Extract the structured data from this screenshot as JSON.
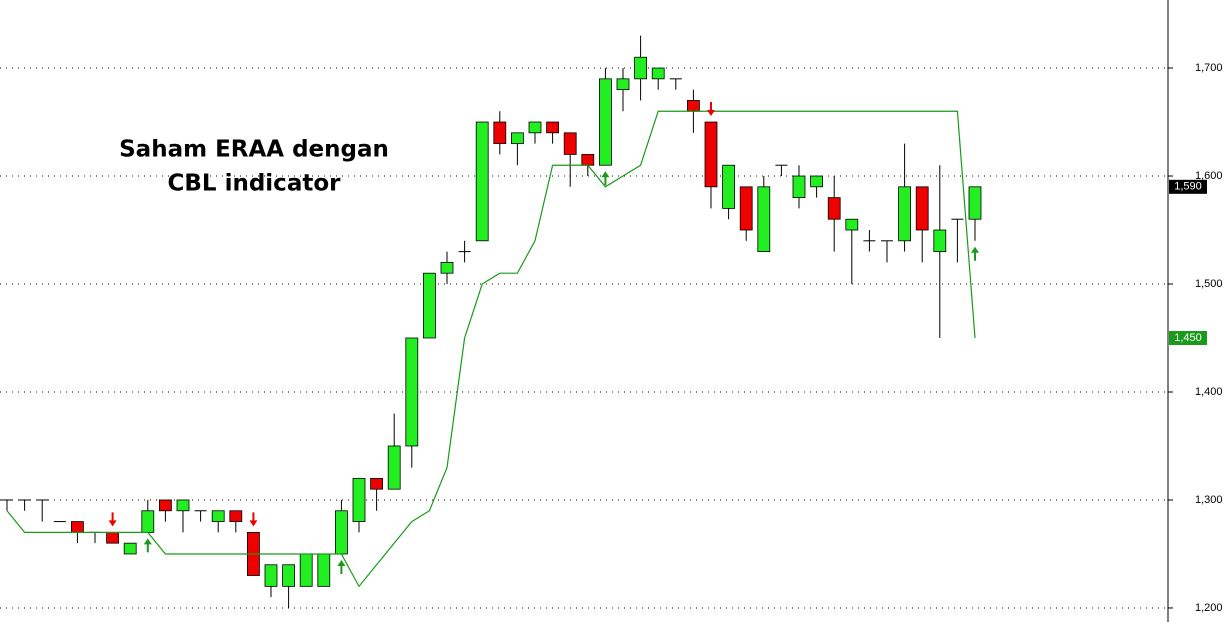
{
  "chart_data": {
    "type": "candlestick",
    "annotations": [
      "Saham ERAA dengan",
      "CBL indicator"
    ],
    "open": [
      1300,
      1300,
      1300,
      1280,
      1280,
      1270,
      1270,
      1250,
      1270,
      1300,
      1290,
      1290,
      1280,
      1290,
      1270,
      1220,
      1220,
      1220,
      1220,
      1250,
      1280,
      1320,
      1310,
      1350,
      1450,
      1510,
      1530,
      1540,
      1650,
      1630,
      1640,
      1650,
      1640,
      1620,
      1610,
      1680,
      1690,
      1690,
      1690,
      1670,
      1650,
      1570,
      1590,
      1530,
      1610,
      1580,
      1590,
      1580,
      1550,
      1540,
      1540,
      1540,
      1590,
      1530,
      1560,
      1560
    ],
    "high": [
      1300,
      1300,
      1300,
      1280,
      1280,
      1270,
      1270,
      1260,
      1300,
      1300,
      1300,
      1290,
      1290,
      1290,
      1270,
      1240,
      1240,
      1250,
      1250,
      1300,
      1320,
      1320,
      1380,
      1450,
      1510,
      1530,
      1540,
      1650,
      1660,
      1640,
      1650,
      1650,
      1640,
      1620,
      1700,
      1700,
      1730,
      1700,
      1690,
      1680,
      1650,
      1610,
      1590,
      1600,
      1610,
      1610,
      1600,
      1600,
      1560,
      1550,
      1540,
      1630,
      1590,
      1610,
      1560,
      1590
    ],
    "low": [
      1290,
      1290,
      1280,
      1280,
      1260,
      1260,
      1260,
      1250,
      1270,
      1280,
      1270,
      1280,
      1270,
      1270,
      1230,
      1210,
      1200,
      1220,
      1220,
      1250,
      1270,
      1290,
      1310,
      1330,
      1450,
      1500,
      1520,
      1540,
      1620,
      1610,
      1630,
      1630,
      1590,
      1600,
      1610,
      1660,
      1670,
      1680,
      1680,
      1640,
      1570,
      1560,
      1540,
      1530,
      1600,
      1570,
      1580,
      1530,
      1500,
      1530,
      1520,
      1530,
      1520,
      1450,
      1520,
      1540
    ],
    "close": [
      1300,
      1300,
      1300,
      1280,
      1270,
      1270,
      1260,
      1260,
      1290,
      1290,
      1300,
      1290,
      1290,
      1280,
      1230,
      1240,
      1240,
      1250,
      1250,
      1290,
      1320,
      1310,
      1350,
      1450,
      1510,
      1520,
      1530,
      1650,
      1630,
      1640,
      1650,
      1640,
      1620,
      1610,
      1690,
      1690,
      1710,
      1700,
      1690,
      1660,
      1590,
      1610,
      1550,
      1590,
      1610,
      1600,
      1600,
      1560,
      1560,
      1540,
      1540,
      1590,
      1550,
      1550,
      1560,
      1590
    ],
    "cbl": [
      1290,
      1270,
      1270,
      1270,
      1270,
      1270,
      1270,
      1270,
      1270,
      1250,
      1250,
      1250,
      1250,
      1250,
      1250,
      1250,
      1250,
      1250,
      1250,
      1250,
      1220,
      1240,
      1260,
      1280,
      1290,
      1330,
      1450,
      1500,
      1510,
      1510,
      1540,
      1610,
      1610,
      1610,
      1590,
      1600,
      1610,
      1660,
      1660,
      1660,
      1660,
      1660,
      1660,
      1660,
      1660,
      1660,
      1660,
      1660,
      1660,
      1660,
      1660,
      1660,
      1660,
      1660,
      1660,
      1450
    ],
    "up_color": "#22ee22",
    "down_color": "#ee0000",
    "cbl_color": "#1a9a1a",
    "signals": [
      {
        "at": 6,
        "dir": "down"
      },
      {
        "at": 8,
        "dir": "up"
      },
      {
        "at": 14,
        "dir": "down"
      },
      {
        "at": 19,
        "dir": "up"
      },
      {
        "at": 34,
        "dir": "up"
      },
      {
        "at": 40,
        "dir": "down"
      },
      {
        "at": 55,
        "dir": "up"
      }
    ],
    "price_tags": [
      {
        "value": 1590,
        "label": "1,590",
        "color": "#000000"
      },
      {
        "value": 1450,
        "label": "1,450",
        "color": "#1a9a1a"
      }
    ],
    "ylim": [
      1187,
      1763
    ],
    "yticks": [
      {
        "value": 1200,
        "label": "1,200"
      },
      {
        "value": 1300,
        "label": "1,300"
      },
      {
        "value": 1400,
        "label": "1,400"
      },
      {
        "value": 1500,
        "label": "1,500"
      },
      {
        "value": 1600,
        "label": "1,600"
      },
      {
        "value": 1700,
        "label": "1,700"
      }
    ],
    "grid": true
  }
}
